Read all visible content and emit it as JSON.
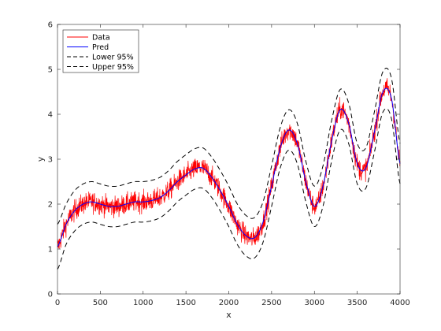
{
  "chart_data": {
    "type": "line",
    "title": "",
    "xlabel": "x",
    "ylabel": "y",
    "xlim": [
      0,
      4000
    ],
    "ylim": [
      0,
      6
    ],
    "xticks": [
      0,
      500,
      1000,
      1500,
      2000,
      2500,
      3000,
      3500,
      4000
    ],
    "yticks": [
      0,
      1,
      2,
      3,
      4,
      5,
      6
    ],
    "grid": false,
    "legend_position": "top-left",
    "series": [
      {
        "name": "Data",
        "color": "#ff0000",
        "style": "noisy-line",
        "x": [
          0,
          100,
          200,
          300,
          400,
          500,
          600,
          700,
          800,
          900,
          1000,
          1100,
          1200,
          1300,
          1400,
          1500,
          1600,
          1700,
          1800,
          1900,
          2000,
          2100,
          2200,
          2300,
          2400,
          2500,
          2600,
          2700,
          2800,
          2900,
          3000,
          3100,
          3200,
          3300,
          3400,
          3500,
          3600,
          3700,
          3800,
          3900,
          4000
        ],
        "y": [
          1.05,
          1.55,
          1.85,
          2.0,
          2.05,
          2.0,
          1.95,
          1.95,
          2.0,
          2.05,
          2.05,
          2.08,
          2.15,
          2.3,
          2.5,
          2.65,
          2.78,
          2.8,
          2.6,
          2.3,
          1.95,
          1.55,
          1.3,
          1.25,
          1.6,
          2.4,
          3.25,
          3.65,
          3.35,
          2.5,
          1.95,
          2.4,
          3.4,
          4.1,
          3.8,
          2.9,
          2.8,
          3.6,
          4.5,
          4.35,
          2.9
        ],
        "noise_amplitude": 0.3
      },
      {
        "name": "Pred",
        "color": "#0000ff",
        "style": "solid",
        "x": [
          0,
          100,
          200,
          300,
          400,
          500,
          600,
          700,
          800,
          900,
          1000,
          1100,
          1200,
          1300,
          1400,
          1500,
          1600,
          1700,
          1800,
          1900,
          2000,
          2100,
          2200,
          2300,
          2400,
          2500,
          2600,
          2700,
          2800,
          2900,
          3000,
          3100,
          3200,
          3300,
          3400,
          3500,
          3600,
          3700,
          3800,
          3900,
          4000
        ],
        "y": [
          1.05,
          1.55,
          1.85,
          2.0,
          2.05,
          2.0,
          1.95,
          1.95,
          2.0,
          2.05,
          2.05,
          2.08,
          2.15,
          2.3,
          2.5,
          2.65,
          2.78,
          2.8,
          2.6,
          2.3,
          1.95,
          1.55,
          1.3,
          1.25,
          1.6,
          2.4,
          3.25,
          3.65,
          3.35,
          2.5,
          1.95,
          2.4,
          3.4,
          4.1,
          3.8,
          2.9,
          2.8,
          3.6,
          4.5,
          4.35,
          2.9
        ]
      },
      {
        "name": "Lower 95%",
        "color": "#000000",
        "style": "dashed",
        "x": [
          0,
          100,
          200,
          300,
          400,
          500,
          600,
          700,
          800,
          900,
          1000,
          1100,
          1200,
          1300,
          1400,
          1500,
          1600,
          1700,
          1800,
          1900,
          2000,
          2100,
          2200,
          2300,
          2400,
          2500,
          2600,
          2700,
          2800,
          2900,
          3000,
          3100,
          3200,
          3300,
          3400,
          3500,
          3600,
          3700,
          3800,
          3900,
          4000
        ],
        "y": [
          0.55,
          1.1,
          1.4,
          1.55,
          1.6,
          1.55,
          1.5,
          1.5,
          1.55,
          1.6,
          1.6,
          1.63,
          1.7,
          1.85,
          2.05,
          2.2,
          2.33,
          2.35,
          2.15,
          1.85,
          1.5,
          1.1,
          0.85,
          0.8,
          1.15,
          1.95,
          2.8,
          3.2,
          2.9,
          2.05,
          1.5,
          1.95,
          2.95,
          3.65,
          3.35,
          2.45,
          2.35,
          3.15,
          4.05,
          3.9,
          2.45
        ]
      },
      {
        "name": "Upper 95%",
        "color": "#000000",
        "style": "dashed",
        "x": [
          0,
          100,
          200,
          300,
          400,
          500,
          600,
          700,
          800,
          900,
          1000,
          1100,
          1200,
          1300,
          1400,
          1500,
          1600,
          1700,
          1800,
          1900,
          2000,
          2100,
          2200,
          2300,
          2400,
          2500,
          2600,
          2700,
          2800,
          2900,
          3000,
          3100,
          3200,
          3300,
          3400,
          3500,
          3600,
          3700,
          3800,
          3900,
          4000
        ],
        "y": [
          1.55,
          2.0,
          2.3,
          2.45,
          2.5,
          2.45,
          2.4,
          2.4,
          2.45,
          2.5,
          2.5,
          2.53,
          2.6,
          2.75,
          2.95,
          3.1,
          3.23,
          3.25,
          3.05,
          2.75,
          2.4,
          2.0,
          1.75,
          1.7,
          2.05,
          2.85,
          3.7,
          4.1,
          3.8,
          2.95,
          2.4,
          2.85,
          3.85,
          4.55,
          4.25,
          3.35,
          3.25,
          4.05,
          4.95,
          4.8,
          3.35
        ]
      }
    ]
  }
}
